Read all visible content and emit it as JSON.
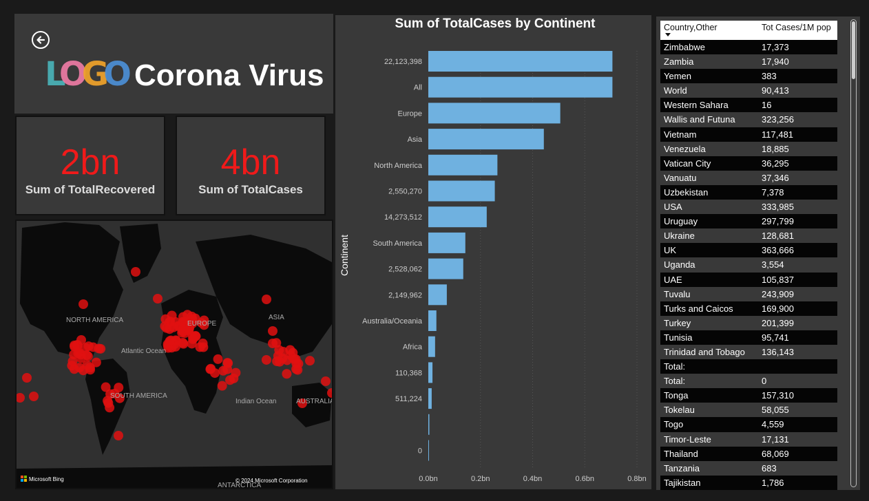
{
  "header": {
    "logo_text": "LOGO",
    "title": "Corona Virus",
    "back_icon": "arrow-left-circle-icon"
  },
  "kpis": [
    {
      "value": "2bn",
      "label": "Sum of TotalRecovered"
    },
    {
      "value": "4bn",
      "label": "Sum of TotalCases"
    }
  ],
  "map": {
    "labels": {
      "north_america": "NORTH AMERICA",
      "south_america": "SOUTH AMERICA",
      "asia": "ASIA",
      "europe": "EUROPE",
      "australia": "AUSTRALIA",
      "atlantic": "Atlantic Ocean",
      "indian": "Indian Ocean",
      "antarctica": "ANTARCTICA"
    },
    "attribution_logo": "Microsoft Bing",
    "copyright": "© 2024 Microsoft Corporation",
    "marker_color": "#e01010"
  },
  "chart_data": {
    "type": "bar",
    "orientation": "horizontal",
    "title": "Sum of TotalCases by Continent",
    "ylabel": "Continent",
    "xlabel": "",
    "categories": [
      "22,123,398",
      "All",
      "Europe",
      "Asia",
      "North America",
      "2,550,270",
      "14,273,512",
      "South America",
      "2,528,062",
      "2,149,962",
      "Australia/Oceania",
      "Africa",
      "110,368",
      "511,224",
      "",
      "0"
    ],
    "values": [
      0.706,
      0.706,
      0.506,
      0.443,
      0.265,
      0.255,
      0.224,
      0.142,
      0.134,
      0.071,
      0.031,
      0.026,
      0.016,
      0.013,
      0.004,
      0.002
    ],
    "value_unit": "bn",
    "xlim": [
      0,
      0.8
    ],
    "xticks": [
      "0.0bn",
      "0.2bn",
      "0.4bn",
      "0.6bn",
      "0.8bn"
    ],
    "bar_color": "#6fb1e0",
    "grid": true
  },
  "table": {
    "columns": [
      "Country,Other",
      "Tot Cases/1M pop"
    ],
    "rows": [
      [
        "Zimbabwe",
        "17,373"
      ],
      [
        "Zambia",
        "17,940"
      ],
      [
        "Yemen",
        "383"
      ],
      [
        "World",
        "90,413"
      ],
      [
        "Western Sahara",
        "16"
      ],
      [
        "Wallis and Futuna",
        "323,256"
      ],
      [
        "Vietnam",
        "117,481"
      ],
      [
        "Venezuela",
        "18,885"
      ],
      [
        "Vatican City",
        "36,295"
      ],
      [
        "Vanuatu",
        "37,346"
      ],
      [
        "Uzbekistan",
        "7,378"
      ],
      [
        "USA",
        "333,985"
      ],
      [
        "Uruguay",
        "297,799"
      ],
      [
        "Ukraine",
        "128,681"
      ],
      [
        "UK",
        "363,666"
      ],
      [
        "Uganda",
        "3,554"
      ],
      [
        "UAE",
        "105,837"
      ],
      [
        "Tuvalu",
        "243,909"
      ],
      [
        "Turks and Caicos",
        "169,900"
      ],
      [
        "Turkey",
        "201,399"
      ],
      [
        "Tunisia",
        "95,741"
      ],
      [
        "Trinidad and Tobago",
        "136,143"
      ],
      [
        "Total:",
        ""
      ],
      [
        "Total:",
        "0"
      ],
      [
        "Tonga",
        "157,310"
      ],
      [
        "Tokelau",
        "58,055"
      ],
      [
        "Togo",
        "4,559"
      ],
      [
        "Timor-Leste",
        "17,131"
      ],
      [
        "Thailand",
        "68,069"
      ],
      [
        "Tanzania",
        "683"
      ],
      [
        "Tajikistan",
        "1,786"
      ]
    ]
  }
}
